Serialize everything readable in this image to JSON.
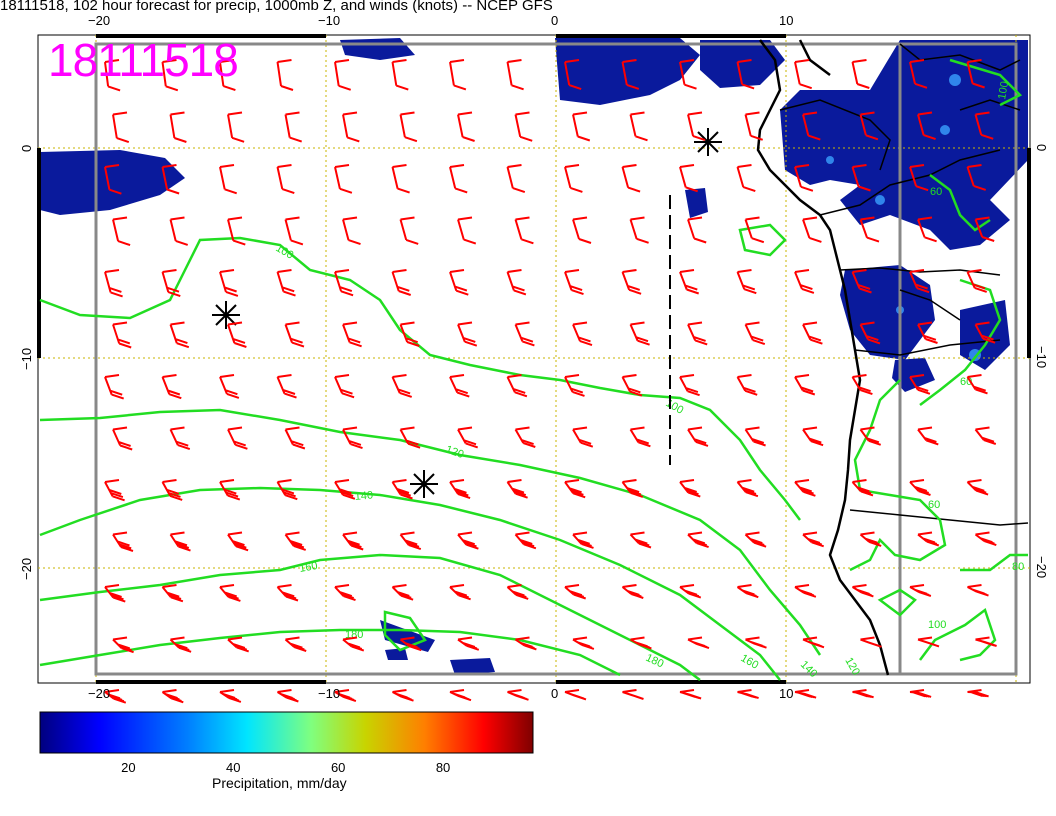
{
  "title": "18111518, 102 hour forecast for precip, 1000mb Z, and winds (knots) -- NCEP GFS",
  "date_stamp": "18111518",
  "map": {
    "lon_ticks": [
      "−20",
      "−10",
      "0",
      "10"
    ],
    "lat_ticks": [
      "0",
      "−10",
      "−20"
    ],
    "contour_labels": [
      "100",
      "100",
      "120",
      "140",
      "160",
      "180",
      "180",
      "160",
      "140",
      "120",
      "100",
      "60",
      "80",
      "60",
      "60",
      "100"
    ],
    "contour_color": "#22dd22",
    "wind_barb_color": "#ff0000",
    "coast_color": "#000000"
  },
  "colorbar": {
    "label": "Precipitation, mm/day",
    "ticks": [
      "20",
      "40",
      "60",
      "80"
    ],
    "tick_values": [
      20,
      40,
      60,
      80
    ],
    "min": 3,
    "max": 97,
    "colors": [
      "#00007f",
      "#0000ff",
      "#007fff",
      "#00ffff",
      "#7fff7f",
      "#c8d400",
      "#ff7f00",
      "#ff0000",
      "#7f0000"
    ]
  }
}
